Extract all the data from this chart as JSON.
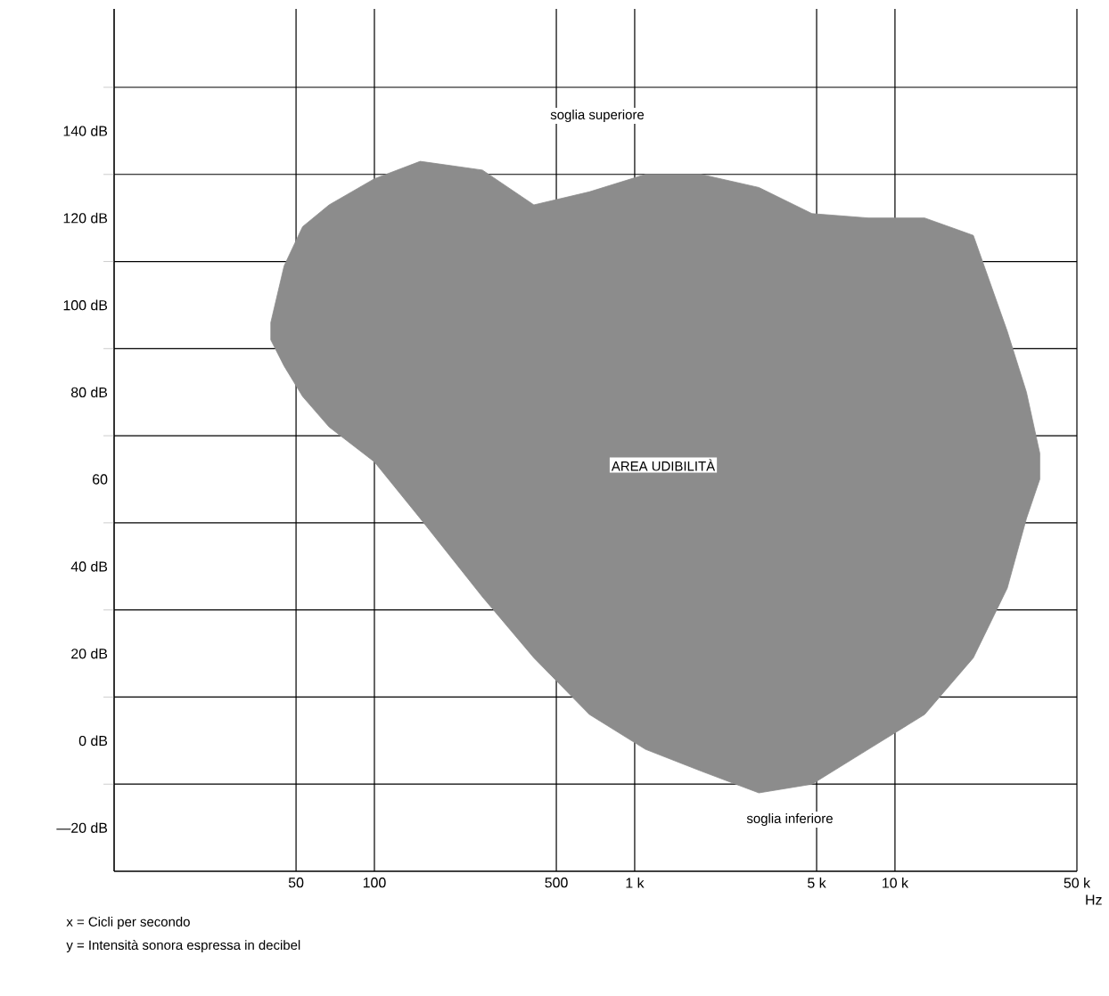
{
  "chart_data": {
    "type": "area",
    "xlabel": "Hz",
    "log": "x",
    "grid": true,
    "xlim": [
      10,
      50000
    ],
    "ylim": [
      -30,
      168
    ],
    "xticks": [
      50,
      100,
      500,
      {
        "value": 1000,
        "label": "1 k"
      },
      {
        "value": 5000,
        "label": "5 k"
      },
      {
        "value": 10000,
        "label": "10 k"
      },
      {
        "value": 50000,
        "label": "50 k"
      }
    ],
    "yticks": [
      {
        "value": -20,
        "label": "—20 dB"
      },
      {
        "value": 0,
        "label": "0 dB"
      },
      {
        "value": 20,
        "label": "20 dB"
      },
      {
        "value": 40,
        "label": "40 dB"
      },
      60,
      {
        "value": 80,
        "label": "80 dB"
      },
      {
        "value": 100,
        "label": "100 dB"
      },
      {
        "value": 120,
        "label": "120 dB"
      },
      {
        "value": 140,
        "label": "140 dB"
      },
      {
        "value": -10,
        "label": null
      },
      {
        "value": 10,
        "label": null
      },
      {
        "value": 30,
        "label": null
      },
      {
        "value": 50,
        "label": null
      },
      {
        "value": 70,
        "label": null
      },
      {
        "value": 90,
        "label": null
      },
      {
        "value": 110,
        "label": null
      },
      {
        "value": 130,
        "label": null
      },
      {
        "value": 150,
        "label": null
      }
    ],
    "series": [
      {
        "color": "#8c8c8c",
        "x": [
          40,
          45,
          53,
          67,
          100,
          150,
          260,
          410,
          670,
          1100,
          1800,
          3000,
          4800,
          7900,
          13000,
          20000,
          27000,
          32000,
          36000,
          36000,
          32000,
          27000,
          20000,
          13000,
          7900,
          4800,
          3000,
          1800,
          1100,
          670,
          410,
          260,
          150,
          100,
          67,
          53,
          45,
          40
        ],
        "values": [
          96,
          109,
          118,
          123,
          129,
          133,
          131,
          123,
          126,
          130,
          130,
          127,
          121,
          120,
          120,
          116,
          94,
          80,
          66,
          60,
          51,
          35,
          19,
          6,
          -2,
          -10,
          -12,
          -7,
          -2,
          6,
          19,
          33,
          51,
          64,
          72,
          79,
          86,
          92
        ]
      }
    ],
    "annotations": [
      "soglia superiore",
      "AREA UDIBILITÀ",
      "soglia inferiore",
      "x = Cicli per secondo",
      "y = Intensità sonora espressa in decibel"
    ]
  }
}
